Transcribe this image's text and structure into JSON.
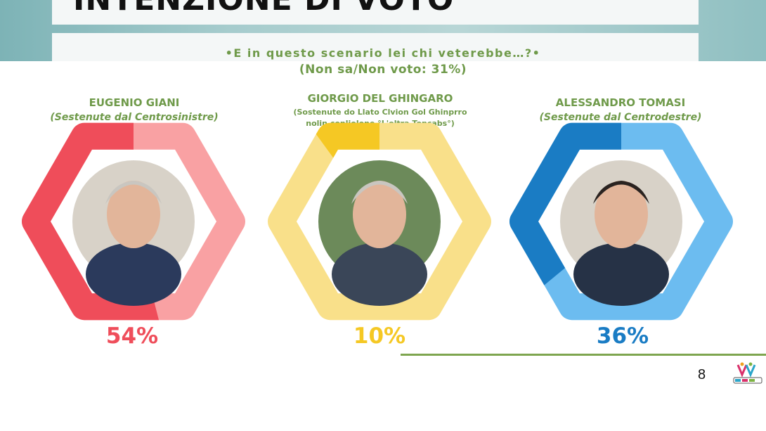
{
  "header": {
    "title": "INTENZIONE DI VOTO",
    "question": "•E in questo scenario lei chi veterebbe…?•",
    "subquestion": "(Non sa/Non voto: 31%)"
  },
  "candidates": [
    {
      "name": "EUGENIO GIANI",
      "support": "(Sestenute dal Centrosinistre)",
      "percent_label": "54%",
      "value": 54,
      "color_dark": "#ef4d5a",
      "color_light": "#f9a1a3",
      "photo_icon": "candidate-portrait-icon"
    },
    {
      "name": "GIORGIO DEL GHINGARO",
      "support_line1": "(Sostenute do Llato Clvion Gol Ghinprro",
      "support_line2": "nolin conliolone °L'oltra Toncabs°)",
      "percent_label": "10%",
      "value": 10,
      "color_dark": "#f5c824",
      "color_light": "#f9e08a",
      "photo_icon": "candidate-portrait-icon"
    },
    {
      "name": "ALESSANDRO TOMASI",
      "support": "(Sestenute dal Centrodestre)",
      "percent_label": "36%",
      "value": 36,
      "color_dark": "#1a7cc4",
      "color_light": "#6cbcf0",
      "photo_icon": "candidate-portrait-icon"
    }
  ],
  "footer": {
    "page_number": "8",
    "logo_icon": "bidimedia-logo-icon"
  },
  "chart_data": {
    "type": "pie",
    "title": "INTENZIONE DI VOTO",
    "subtitle": "(Non sa/Non voto: 31%)",
    "categories": [
      "EUGENIO GIANI",
      "GIORGIO DEL GHINGARO",
      "ALESSANDRO TOMASI"
    ],
    "values": [
      54,
      10,
      36
    ],
    "unit": "%",
    "legend": "none"
  }
}
